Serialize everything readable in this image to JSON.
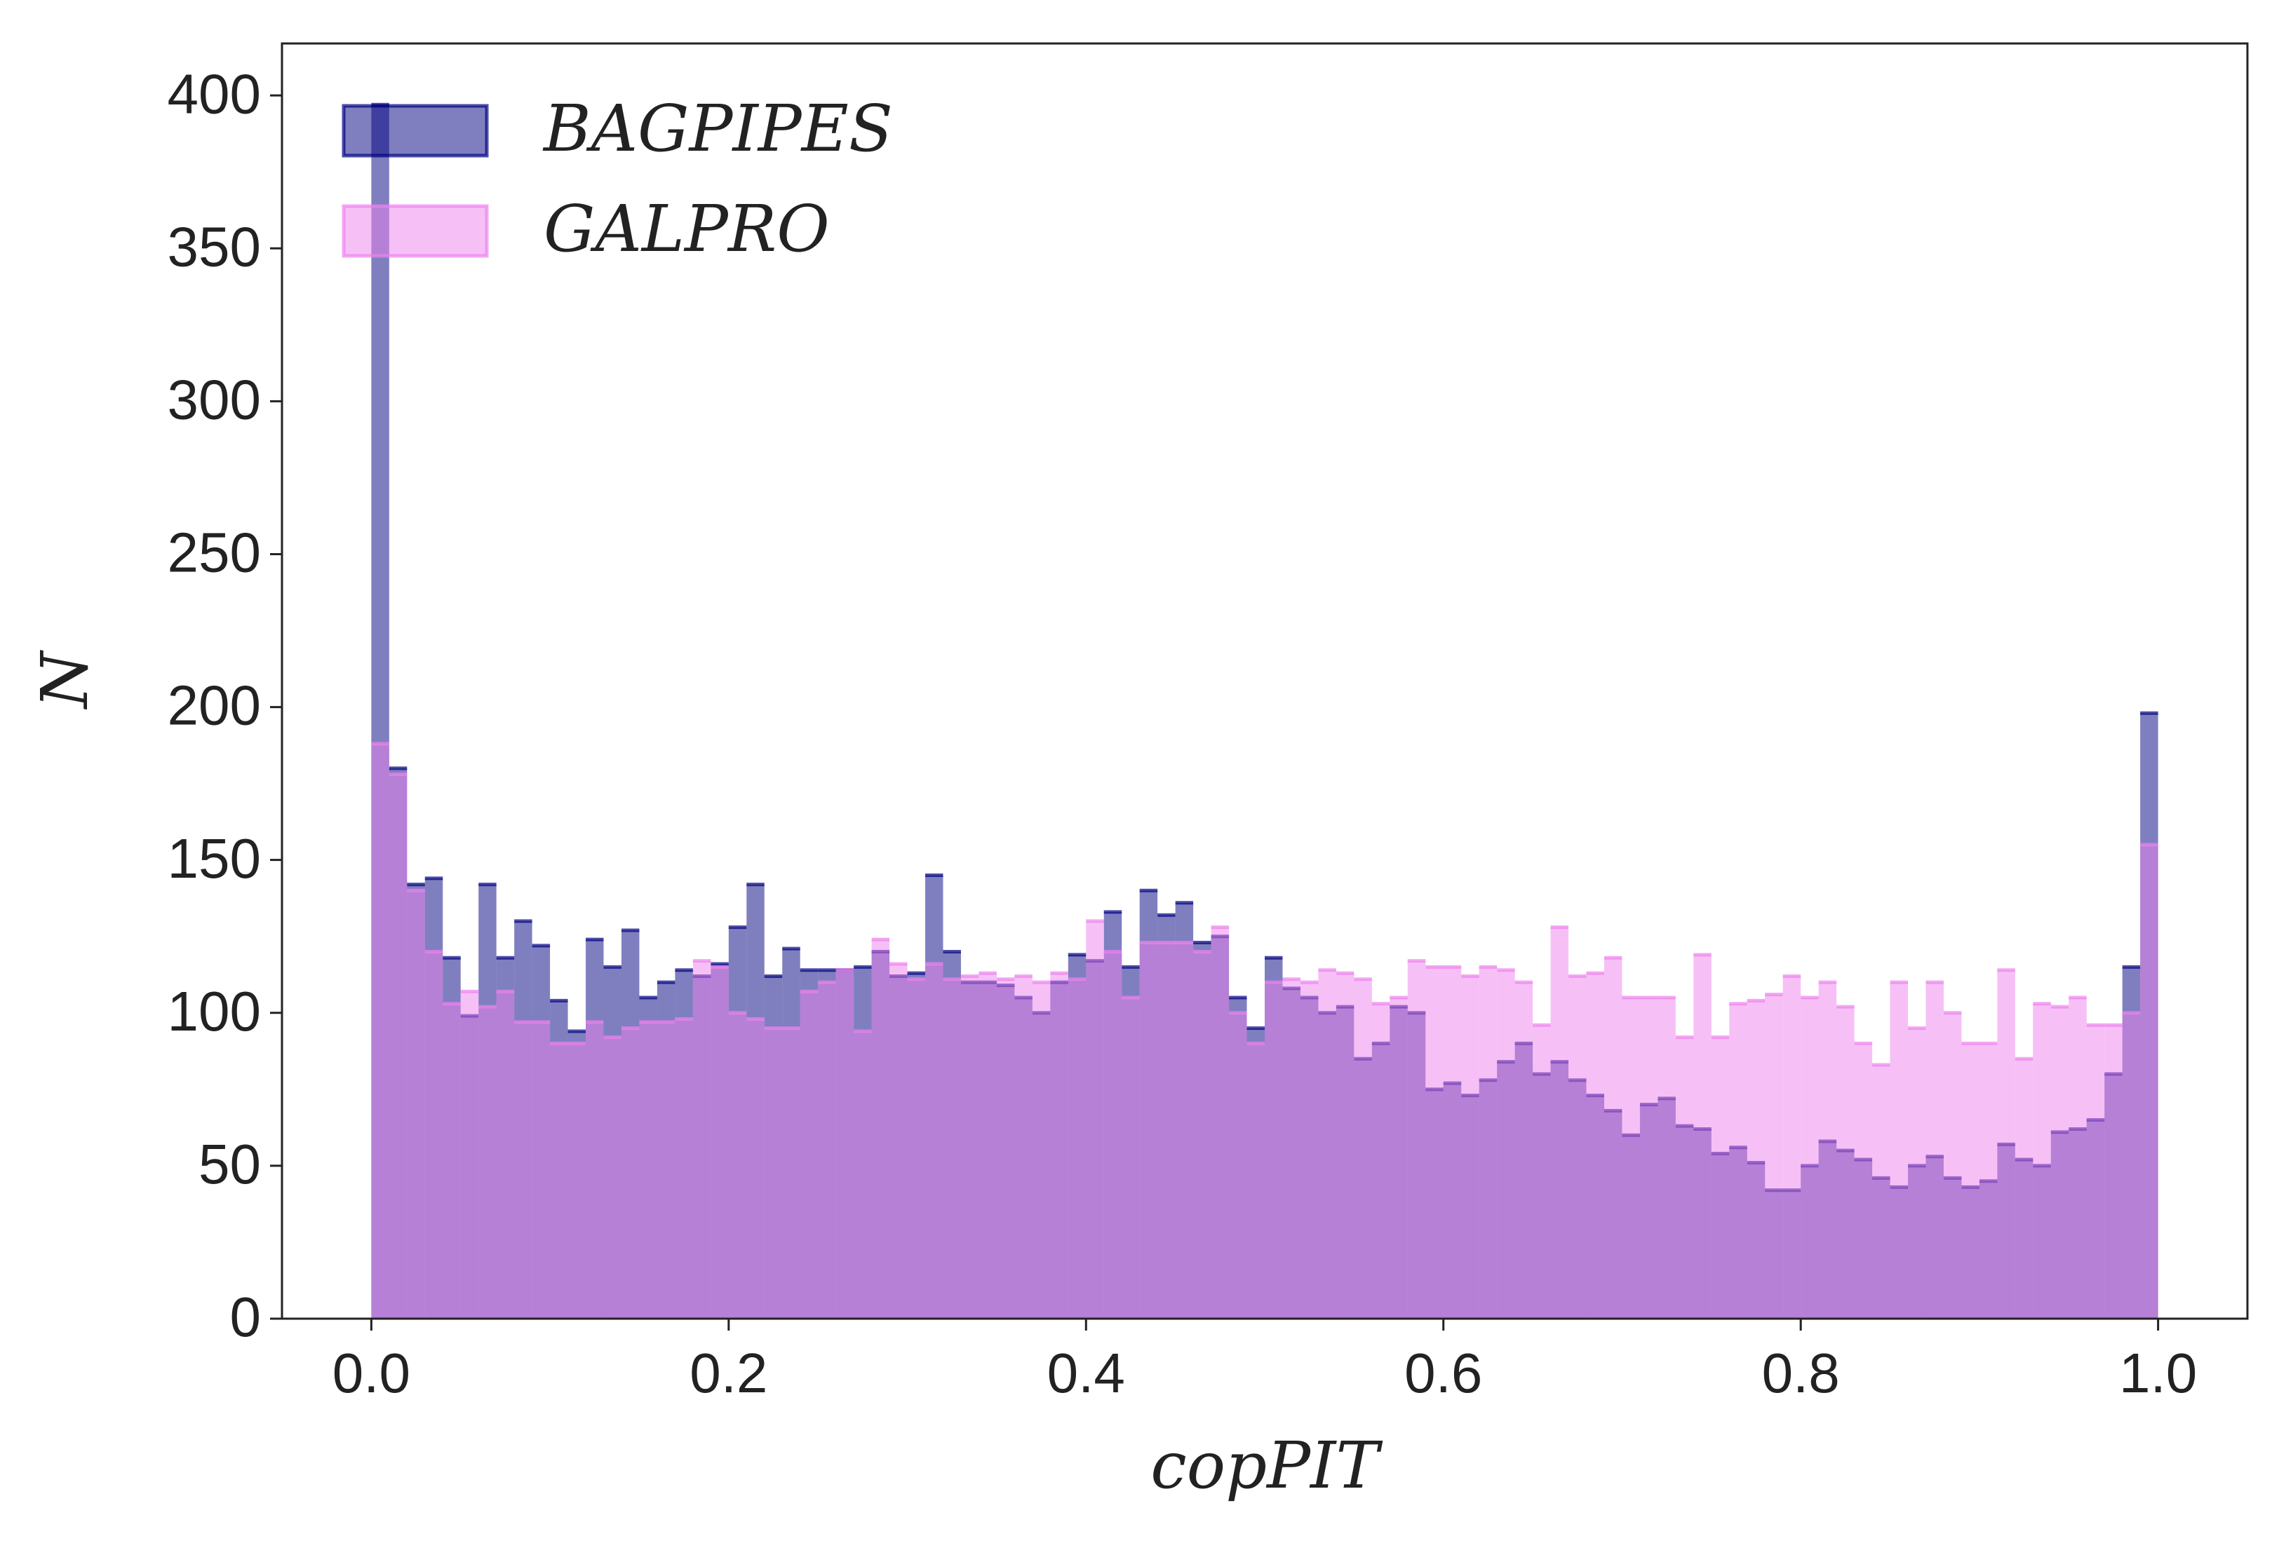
{
  "chart_data": {
    "type": "histogram",
    "xlabel": "copPIT",
    "ylabel": "N",
    "bins": [
      0,
      0.01,
      0.02,
      0.03,
      0.04,
      0.05,
      0.06,
      0.07,
      0.08,
      0.09,
      0.1,
      0.11,
      0.12,
      0.13,
      0.14,
      0.15,
      0.16,
      0.17,
      0.18,
      0.19,
      0.2,
      0.21,
      0.22,
      0.23,
      0.24,
      0.25,
      0.26,
      0.27,
      0.28,
      0.29,
      0.3,
      0.31,
      0.32,
      0.33,
      0.34,
      0.35,
      0.36,
      0.37,
      0.38,
      0.39,
      0.4,
      0.41,
      0.42,
      0.43,
      0.44,
      0.45,
      0.46,
      0.47,
      0.48,
      0.49,
      0.5,
      0.51,
      0.52,
      0.53,
      0.54,
      0.55,
      0.56,
      0.57,
      0.58,
      0.59,
      0.6,
      0.61,
      0.62,
      0.63,
      0.64,
      0.65,
      0.66,
      0.67,
      0.68,
      0.69,
      0.7,
      0.71,
      0.72,
      0.73,
      0.74,
      0.75,
      0.76,
      0.77,
      0.78,
      0.79,
      0.8,
      0.81,
      0.82,
      0.83,
      0.84,
      0.85,
      0.86,
      0.87,
      0.88,
      0.89,
      0.9,
      0.91,
      0.92,
      0.93,
      0.94,
      0.95,
      0.96,
      0.97,
      0.98,
      0.99,
      1.0
    ],
    "series": [
      {
        "name": "BAGPIPES",
        "color": "#000080",
        "values": [
          397,
          180,
          142,
          144,
          118,
          99,
          142,
          118,
          130,
          122,
          104,
          94,
          124,
          115,
          127,
          105,
          110,
          114,
          112,
          116,
          128,
          142,
          112,
          121,
          114,
          114,
          114,
          115,
          120,
          112,
          113,
          145,
          120,
          110,
          110,
          109,
          105,
          100,
          110,
          119,
          117,
          133,
          115,
          140,
          132,
          136,
          123,
          125,
          105,
          95,
          118,
          108,
          105,
          100,
          102,
          85,
          90,
          102,
          100,
          75,
          77,
          73,
          78,
          84,
          90,
          80,
          84,
          78,
          73,
          68,
          60,
          70,
          72,
          63,
          62,
          54,
          56,
          51,
          42,
          42,
          50,
          58,
          55,
          52,
          46,
          43,
          50,
          53,
          46,
          43,
          45,
          57,
          52,
          50,
          61,
          62,
          65,
          80,
          115,
          198
        ]
      },
      {
        "name": "GALPRO",
        "color": "#ee82ee",
        "values": [
          188,
          178,
          140,
          120,
          103,
          107,
          102,
          107,
          97,
          97,
          90,
          90,
          97,
          92,
          95,
          97,
          97,
          98,
          117,
          115,
          100,
          98,
          95,
          95,
          107,
          110,
          114,
          94,
          124,
          116,
          111,
          116,
          111,
          112,
          113,
          111,
          112,
          110,
          113,
          111,
          130,
          120,
          105,
          123,
          123,
          123,
          120,
          128,
          100,
          90,
          110,
          111,
          110,
          114,
          113,
          111,
          103,
          105,
          117,
          115,
          115,
          112,
          115,
          114,
          110,
          96,
          128,
          112,
          113,
          118,
          105,
          105,
          105,
          92,
          119,
          92,
          103,
          104,
          106,
          112,
          105,
          110,
          102,
          90,
          83,
          110,
          95,
          110,
          100,
          90,
          90,
          114,
          85,
          103,
          102,
          105,
          96,
          96,
          100,
          155
        ]
      }
    ],
    "xlim": [
      -0.05,
      1.05
    ],
    "ylim": [
      0,
      417
    ],
    "xticks": [
      {
        "value": 0,
        "label": "0.0"
      },
      0.2,
      0.4,
      0.6,
      0.8,
      {
        "value": 1,
        "label": "1.0"
      }
    ],
    "yticks": [
      0,
      50,
      100,
      150,
      200,
      250,
      300,
      350,
      400
    ],
    "legend": "upper left",
    "opacity": 0.5
  }
}
